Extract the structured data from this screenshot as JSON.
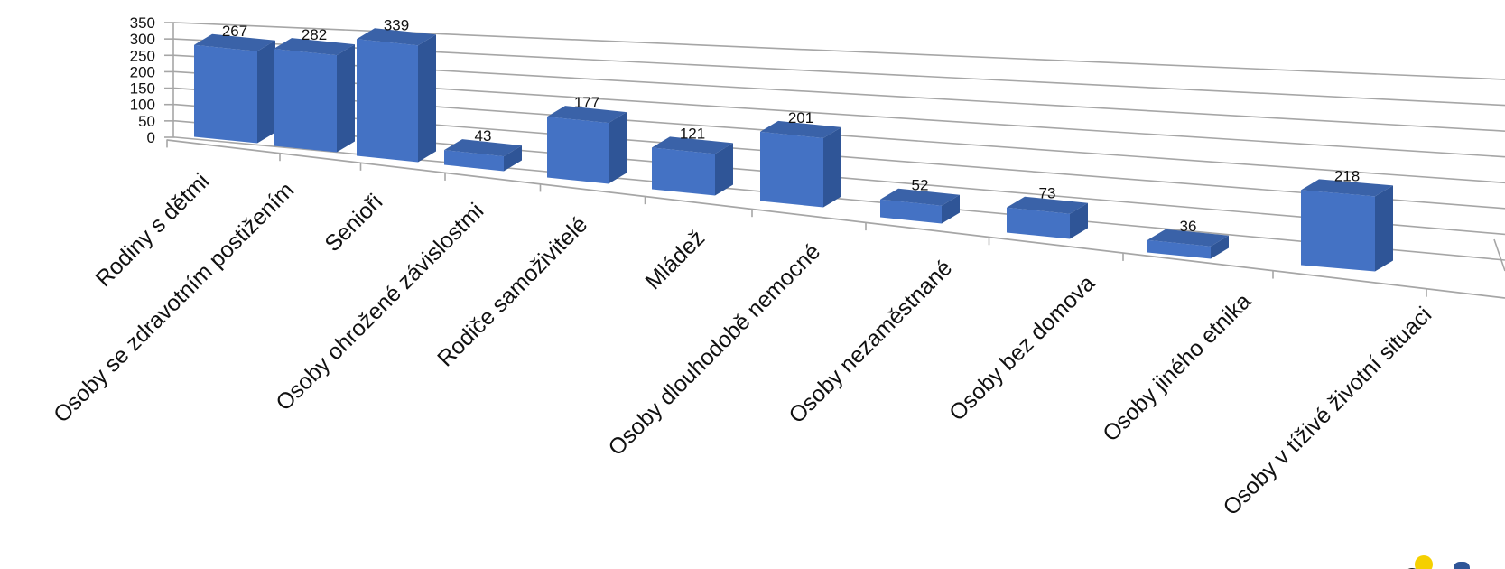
{
  "chart_data": {
    "type": "bar",
    "categories": [
      "Rodiny s dětmi",
      "Osoby se zdravotním postižením",
      "Senioři",
      "Osoby ohrožené závislostmi",
      "Rodiče samoživitelé",
      "Mládež",
      "Osoby dlouhodobě nemocné",
      "Osoby nezaměstnané",
      "Osoby bez domova",
      "Osoby jiného etnika",
      "Osoby v tíživé životní situaci"
    ],
    "values": [
      267,
      282,
      339,
      43,
      177,
      121,
      201,
      52,
      73,
      36,
      218
    ],
    "yticks": [
      0,
      50,
      100,
      150,
      200,
      250,
      300,
      350
    ],
    "ylim": [
      0,
      350
    ],
    "grid": true,
    "legend": "none",
    "bar_color": "#4472C4",
    "bar_side_color": "#2F5597",
    "bar_top_color": "#3A62A8",
    "gridline_color": "#A6A6A6",
    "logo_colors": [
      "#222222",
      "#F5D000",
      "#2F5597"
    ]
  }
}
